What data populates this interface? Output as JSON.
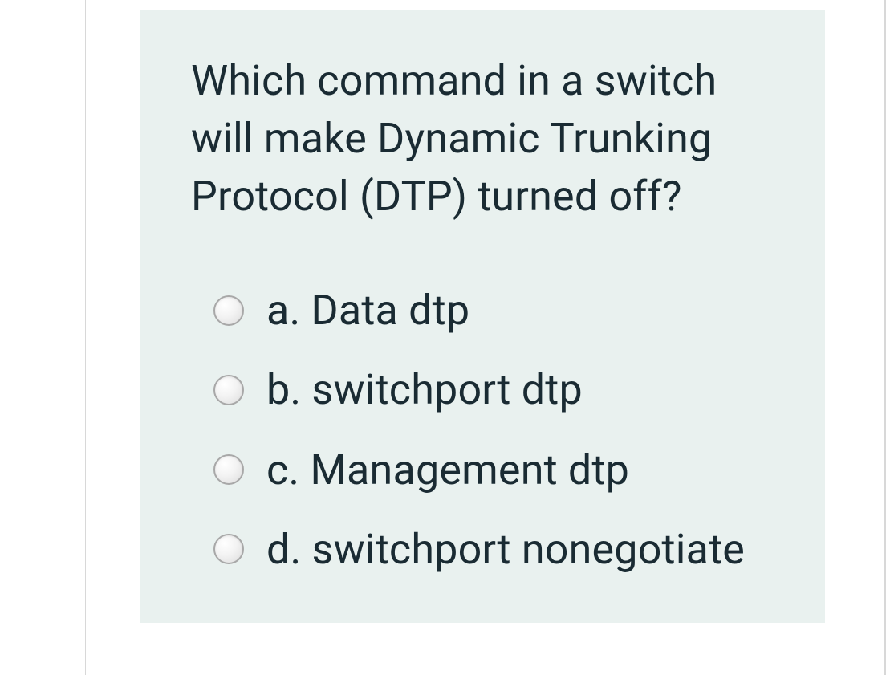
{
  "question": {
    "text": "Which command in a switch will make Dynamic Trunking Protocol (DTP) turned off?",
    "options": [
      {
        "letter": "a.",
        "text": "Data dtp"
      },
      {
        "letter": "b.",
        "text": "switchport dtp"
      },
      {
        "letter": "c.",
        "text": "Management dtp"
      },
      {
        "letter": "d.",
        "text": "switchport nonegotiate"
      }
    ]
  },
  "colors": {
    "card_bg": "#e9f1ef",
    "text": "#1a2b33",
    "divider": "#d8d8d8"
  }
}
